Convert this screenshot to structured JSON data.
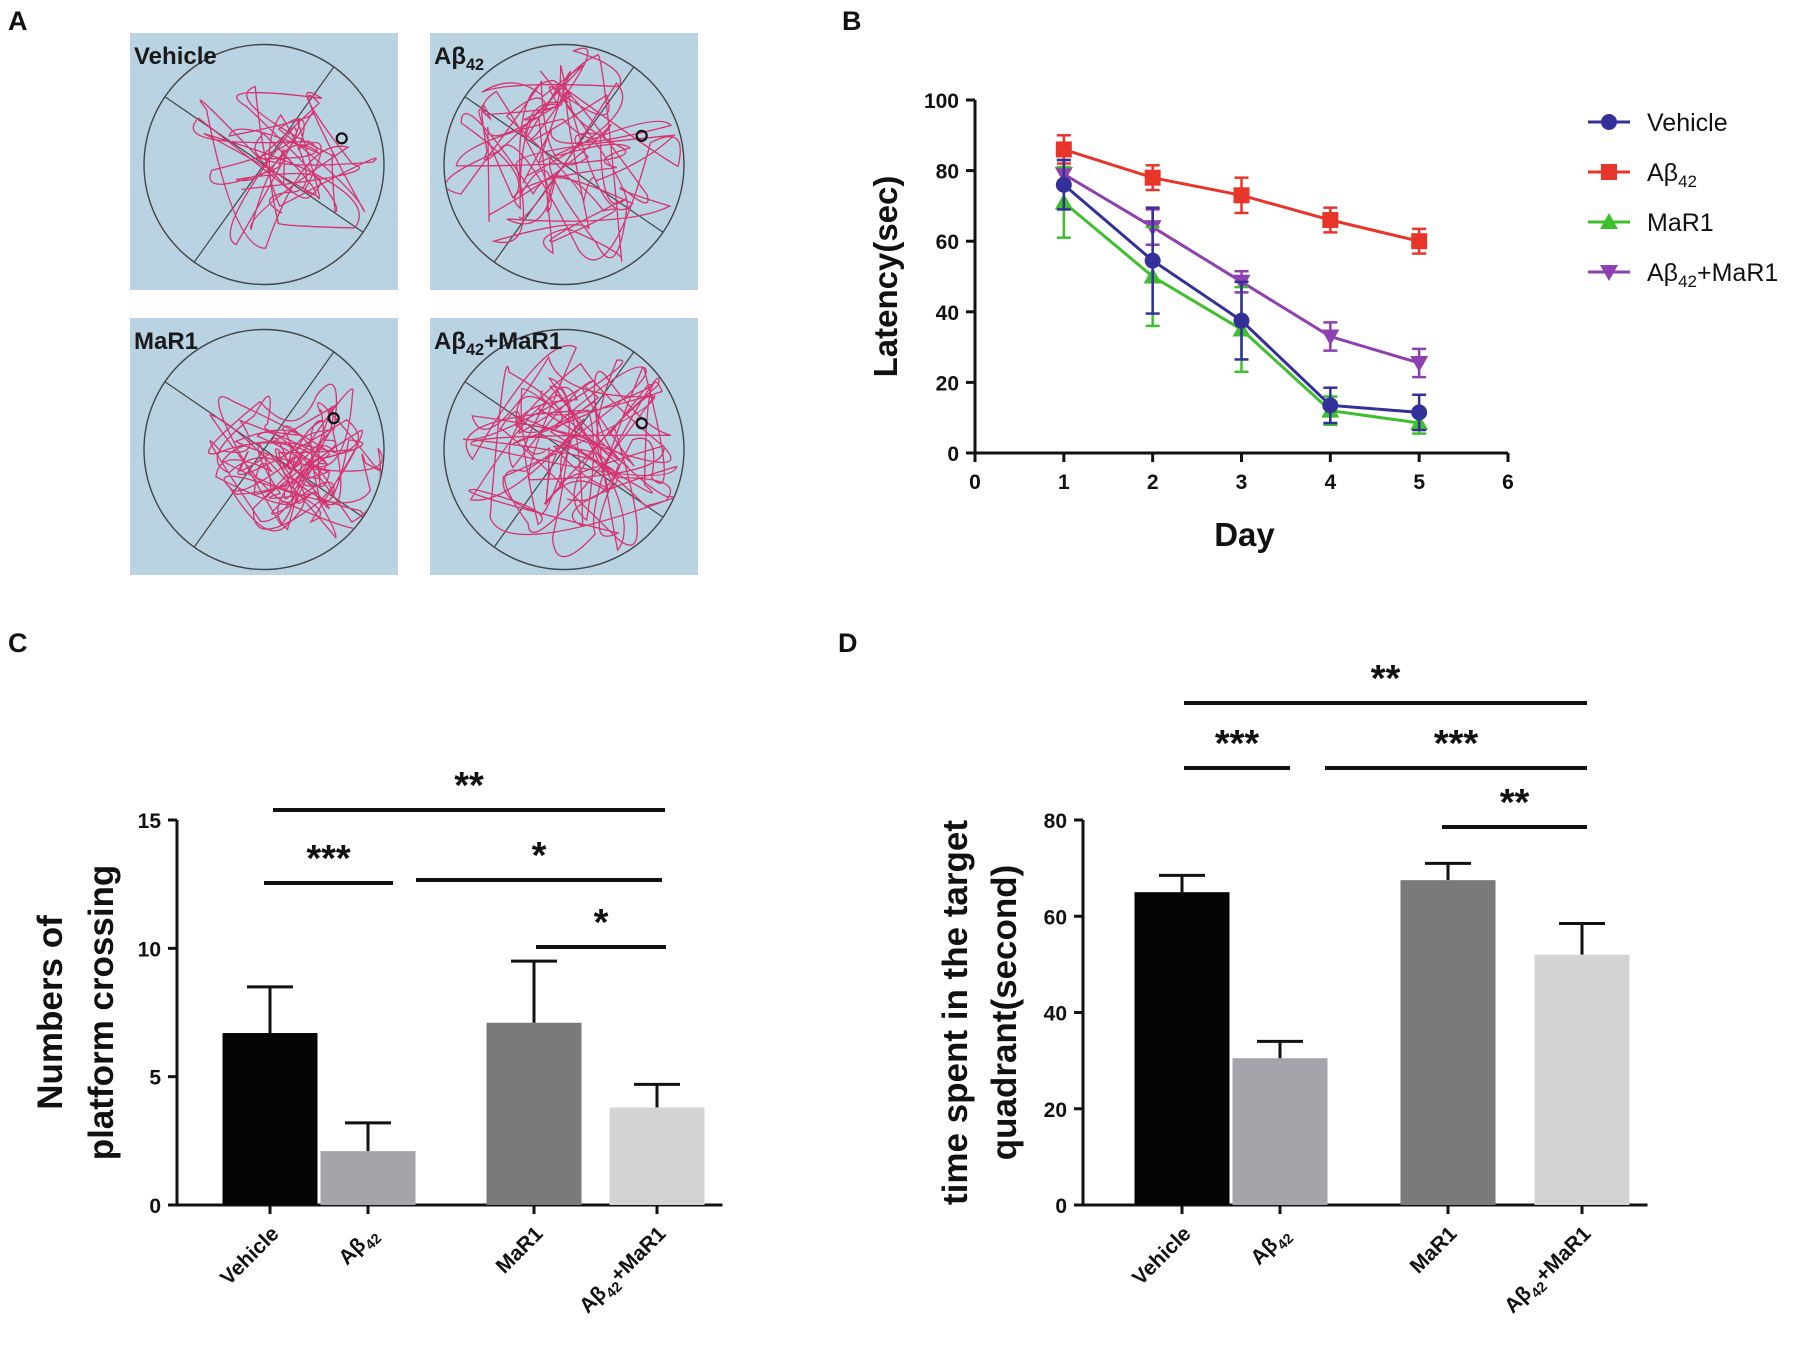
{
  "panel_labels": [
    "A",
    "B",
    "C",
    "D"
  ],
  "colors": {
    "maze_bg": "#b9d3e2",
    "path": "#d6336f",
    "vehicle": "#33309a",
    "abeta": "#e8352a",
    "mar1": "#3fbf2e",
    "abeta_mar1": "#8e3fb0",
    "bar_vehicle": "#050505",
    "bar_abeta": "#a5a4aa",
    "bar_mar1": "#7a7a7a",
    "bar_abeta_mar1": "#d4d4d4"
  },
  "maze_panels": [
    {
      "title": "Vehicle",
      "title_sub": ""
    },
    {
      "title": "Aβ",
      "title_sub": "42"
    },
    {
      "title": "MaR1",
      "title_sub": ""
    },
    {
      "title": "Aβ",
      "title_sub": "42",
      "title_suffix": "+MaR1"
    }
  ],
  "chart_data": [
    {
      "panel": "B",
      "type": "line",
      "xlabel": "Day",
      "ylabel": "Latency(sec)",
      "xlim": [
        0,
        6
      ],
      "ylim": [
        0,
        100
      ],
      "xticks": [
        0,
        1,
        2,
        3,
        4,
        5,
        6
      ],
      "yticks": [
        0,
        20,
        40,
        60,
        80,
        100
      ],
      "x": [
        1,
        2,
        3,
        4,
        5
      ],
      "legend_position": "top-right",
      "series": [
        {
          "name": "Vehicle",
          "name_sub": "",
          "name_suffix": "",
          "marker": "circle",
          "color": "#33309a",
          "values": [
            76,
            54.5,
            37.5,
            13.5,
            11.5
          ],
          "errors": [
            7,
            15,
            11,
            5,
            5
          ]
        },
        {
          "name": "Aβ",
          "name_sub": "42",
          "name_suffix": "",
          "marker": "square",
          "color": "#e8352a",
          "values": [
            86,
            78,
            73,
            66,
            60
          ],
          "errors": [
            4,
            3.5,
            5,
            3.5,
            3.5
          ]
        },
        {
          "name": "MaR1",
          "name_sub": "",
          "name_suffix": "",
          "marker": "triangle-up",
          "color": "#3fbf2e",
          "values": [
            71,
            50,
            35,
            12,
            8.5
          ],
          "errors": [
            10,
            14,
            12,
            4,
            3
          ]
        },
        {
          "name": "Aβ",
          "name_sub": "42",
          "name_suffix": "+MaR1",
          "marker": "triangle-down",
          "color": "#8e3fb0",
          "values": [
            79,
            64,
            48.5,
            33,
            25.5
          ],
          "errors": [
            4,
            5,
            3,
            4,
            4
          ]
        }
      ]
    },
    {
      "panel": "C",
      "type": "bar",
      "ylabel_lines": [
        "Numbers of",
        "platform crossing"
      ],
      "ylim": [
        0,
        15
      ],
      "yticks": [
        0,
        5,
        10,
        15
      ],
      "categories": [
        {
          "name": "Vehicle",
          "sub": "",
          "suffix": ""
        },
        {
          "name": "Aβ",
          "sub": "42",
          "suffix": ""
        },
        {
          "name": "MaR1",
          "sub": "",
          "suffix": ""
        },
        {
          "name": "Aβ",
          "sub": "42",
          "suffix": "+MaR1"
        }
      ],
      "values": [
        6.7,
        2.1,
        7.1,
        3.8
      ],
      "errors": [
        1.8,
        1.1,
        2.4,
        0.9
      ],
      "significance": [
        {
          "from": 0,
          "to": 3,
          "label": "**"
        },
        {
          "from": 0,
          "to": 1,
          "label": "***"
        },
        {
          "from": 1,
          "to": 3,
          "label": "*"
        },
        {
          "from": 2,
          "to": 3,
          "label": "*"
        }
      ]
    },
    {
      "panel": "D",
      "type": "bar",
      "ylabel_lines": [
        "time spent in the target",
        "quadrant(second)"
      ],
      "ylim": [
        0,
        80
      ],
      "yticks": [
        0,
        20,
        40,
        60,
        80
      ],
      "categories": [
        {
          "name": "Vehicle",
          "sub": "",
          "suffix": ""
        },
        {
          "name": "Aβ",
          "sub": "42",
          "suffix": ""
        },
        {
          "name": "MaR1",
          "sub": "",
          "suffix": ""
        },
        {
          "name": "Aβ",
          "sub": "42",
          "suffix": "+MaR1"
        }
      ],
      "values": [
        65,
        30.5,
        67.5,
        52
      ],
      "errors": [
        3.5,
        3.5,
        3.5,
        6.5
      ],
      "significance": [
        {
          "from": 0,
          "to": 3,
          "label": "**"
        },
        {
          "from": 0,
          "to": 1,
          "label": "***"
        },
        {
          "from": 1,
          "to": 3,
          "label": "***"
        },
        {
          "from": 2,
          "to": 3,
          "label": "**"
        }
      ]
    }
  ]
}
